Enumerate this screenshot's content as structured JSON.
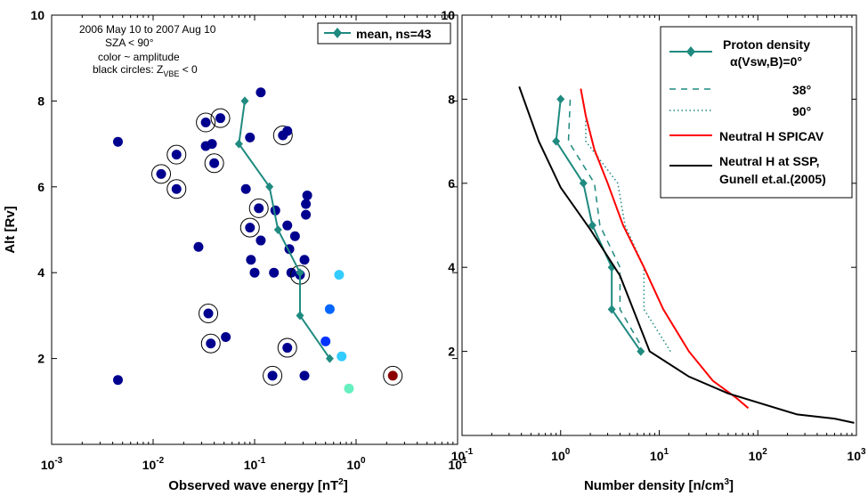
{
  "chart_data": [
    {
      "type": "scatter",
      "xscale": "log",
      "xlim": [
        0.001,
        10
      ],
      "ylim": [
        0,
        10
      ],
      "xlabel": "Observed wave energy [nT",
      "xlabel_sup": "2",
      "xlabel_end": "]",
      "ylabel": "Alt [Rv]",
      "x_ticks": [
        {
          "v": 0.001,
          "b": "10",
          "e": "-3"
        },
        {
          "v": 0.01,
          "b": "10",
          "e": "-2"
        },
        {
          "v": 0.1,
          "b": "10",
          "e": "-1"
        },
        {
          "v": 1,
          "b": "10",
          "e": "0"
        },
        {
          "v": 10,
          "b": "10",
          "e": "1"
        }
      ],
      "y_ticks": [
        {
          "v": 2,
          "label": "2"
        },
        {
          "v": 4,
          "label": "4"
        },
        {
          "v": 6,
          "label": "6"
        },
        {
          "v": 8,
          "label": "8"
        },
        {
          "v": 10,
          "label": "10"
        }
      ],
      "annotations": [
        "2006 May 10 to 2007 Aug 10",
        "SZA < 90°",
        "color ~ amplitude",
        "black circles: Z",
        "VBE",
        " < 0"
      ],
      "legend": {
        "label": "mean, ns=43",
        "position": "top-right"
      },
      "mean_line": {
        "name": "mean, ns=43",
        "color": "#1f8a80",
        "x": [
          0.55,
          0.28,
          0.28,
          0.17,
          0.14,
          0.07,
          0.08
        ],
        "y": [
          2,
          3,
          4,
          5,
          6,
          7,
          8
        ]
      },
      "points": [
        {
          "x": 0.0045,
          "y": 1.5,
          "c": "#00008f",
          "circled": false
        },
        {
          "x": 0.0045,
          "y": 7.05,
          "c": "#00008f",
          "circled": false
        },
        {
          "x": 0.012,
          "y": 6.3,
          "c": "#00008f",
          "circled": true
        },
        {
          "x": 0.017,
          "y": 6.75,
          "c": "#00008f",
          "circled": true
        },
        {
          "x": 0.017,
          "y": 5.95,
          "c": "#00008f",
          "circled": true
        },
        {
          "x": 0.028,
          "y": 4.6,
          "c": "#00008f",
          "circled": false
        },
        {
          "x": 0.033,
          "y": 7.5,
          "c": "#00008f",
          "circled": true
        },
        {
          "x": 0.033,
          "y": 6.95,
          "c": "#00008f",
          "circled": false
        },
        {
          "x": 0.038,
          "y": 7.0,
          "c": "#00008f",
          "circled": false
        },
        {
          "x": 0.035,
          "y": 3.05,
          "c": "#00008f",
          "circled": true
        },
        {
          "x": 0.037,
          "y": 2.35,
          "c": "#00008f",
          "circled": true
        },
        {
          "x": 0.04,
          "y": 6.55,
          "c": "#00008f",
          "circled": true
        },
        {
          "x": 0.046,
          "y": 7.6,
          "c": "#00008f",
          "circled": true
        },
        {
          "x": 0.052,
          "y": 2.5,
          "c": "#00008f",
          "circled": false
        },
        {
          "x": 0.082,
          "y": 5.95,
          "c": "#00008f",
          "circled": false
        },
        {
          "x": 0.09,
          "y": 7.15,
          "c": "#00008f",
          "circled": false
        },
        {
          "x": 0.09,
          "y": 5.05,
          "c": "#00008f",
          "circled": true
        },
        {
          "x": 0.092,
          "y": 4.3,
          "c": "#00008f",
          "circled": false
        },
        {
          "x": 0.1,
          "y": 4.0,
          "c": "#00008f",
          "circled": false
        },
        {
          "x": 0.11,
          "y": 5.5,
          "c": "#00008f",
          "circled": true
        },
        {
          "x": 0.115,
          "y": 4.75,
          "c": "#00008f",
          "circled": false
        },
        {
          "x": 0.115,
          "y": 8.2,
          "c": "#00008f",
          "circled": false
        },
        {
          "x": 0.15,
          "y": 1.6,
          "c": "#00008f",
          "circled": true
        },
        {
          "x": 0.155,
          "y": 4.0,
          "c": "#00008f",
          "circled": false
        },
        {
          "x": 0.16,
          "y": 5.45,
          "c": "#00008f",
          "circled": false
        },
        {
          "x": 0.19,
          "y": 7.2,
          "c": "#00008f",
          "circled": true
        },
        {
          "x": 0.21,
          "y": 2.25,
          "c": "#00008f",
          "circled": true
        },
        {
          "x": 0.21,
          "y": 5.1,
          "c": "#00008f",
          "circled": false
        },
        {
          "x": 0.21,
          "y": 7.3,
          "c": "#00008f",
          "circled": false
        },
        {
          "x": 0.22,
          "y": 4.55,
          "c": "#00008f",
          "circled": false
        },
        {
          "x": 0.23,
          "y": 4.0,
          "c": "#00008f",
          "circled": false
        },
        {
          "x": 0.25,
          "y": 4.85,
          "c": "#00008f",
          "circled": false
        },
        {
          "x": 0.28,
          "y": 3.95,
          "c": "#00008f",
          "circled": true
        },
        {
          "x": 0.31,
          "y": 1.6,
          "c": "#00008f",
          "circled": false
        },
        {
          "x": 0.31,
          "y": 4.3,
          "c": "#00008f",
          "circled": false
        },
        {
          "x": 0.32,
          "y": 5.35,
          "c": "#00008f",
          "circled": false
        },
        {
          "x": 0.32,
          "y": 5.6,
          "c": "#00008f",
          "circled": false
        },
        {
          "x": 0.33,
          "y": 5.8,
          "c": "#00008f",
          "circled": false
        },
        {
          "x": 0.5,
          "y": 2.4,
          "c": "#0033ff",
          "circled": false
        },
        {
          "x": 0.55,
          "y": 3.15,
          "c": "#0066ff",
          "circled": false
        },
        {
          "x": 0.68,
          "y": 3.95,
          "c": "#33ccff",
          "circled": false
        },
        {
          "x": 0.72,
          "y": 2.05,
          "c": "#33ccff",
          "circled": false
        },
        {
          "x": 0.85,
          "y": 1.3,
          "c": "#66f0c0",
          "circled": false
        },
        {
          "x": 2.3,
          "y": 1.6,
          "c": "#8b0000",
          "circled": true
        }
      ]
    },
    {
      "type": "line",
      "xscale": "log",
      "xlim": [
        0.1,
        1000
      ],
      "ylim": [
        0,
        10
      ],
      "xlabel": "Number density [n/cm",
      "xlabel_sup": "3",
      "xlabel_end": "]",
      "x_ticks": [
        {
          "v": 0.1,
          "b": "10",
          "e": "-1"
        },
        {
          "v": 1,
          "b": "10",
          "e": "0"
        },
        {
          "v": 10,
          "b": "10",
          "e": "1"
        },
        {
          "v": 100,
          "b": "10",
          "e": "2"
        },
        {
          "v": 1000,
          "b": "10",
          "e": "3"
        }
      ],
      "y_ticks": [
        {
          "v": 2,
          "label": "2"
        },
        {
          "v": 4,
          "label": "4"
        },
        {
          "v": 6,
          "label": "6"
        },
        {
          "v": 8,
          "label": "8"
        },
        {
          "v": 10,
          "label": "10"
        }
      ],
      "legend_position": "top-right",
      "series": [
        {
          "key": "p0",
          "name": "Proton density",
          "name2": "α(Vsw,B)=0°",
          "color": "#1f8a80",
          "style": "solid-diamond",
          "x": [
            6.5,
            3.3,
            3.3,
            2.1,
            1.7,
            0.9,
            1.0
          ],
          "y": [
            2,
            3,
            4,
            5,
            6,
            7,
            8
          ]
        },
        {
          "key": "p38",
          "name": "38°",
          "color": "#1f8a80",
          "style": "dashed",
          "x": [
            6.3,
            4.0,
            4.0,
            2.5,
            2.2,
            1.2,
            1.25
          ],
          "y": [
            2.2,
            3,
            4,
            5,
            6,
            7,
            8
          ]
        },
        {
          "key": "p90",
          "name": "90°",
          "color": "#1f8a80",
          "style": "dotted",
          "x": [
            13,
            7,
            7,
            4.5,
            3.8,
            1.8,
            1.8
          ],
          "y": [
            2,
            3,
            4,
            5,
            6,
            7,
            7.5
          ]
        },
        {
          "key": "spicav",
          "name": "Neutral H SPICAV",
          "color": "#ff0000",
          "style": "solid",
          "x": [
            1.6,
            1.8,
            2.2,
            3.0,
            4.3,
            7.0,
            11,
            20,
            35,
            60,
            80
          ],
          "y": [
            8.25,
            7.6,
            6.8,
            6.0,
            5.0,
            4.0,
            3.0,
            2.0,
            1.3,
            0.9,
            0.65
          ]
        },
        {
          "key": "ssp",
          "name": "Neutral H at SSP,",
          "name2": "Gunell et.al.(2005)",
          "color": "#000000",
          "style": "solid",
          "x": [
            0.38,
            0.6,
            1.0,
            2.0,
            4.0,
            8.0,
            20,
            50,
            250,
            600,
            950
          ],
          "y": [
            8.3,
            7.0,
            5.9,
            4.9,
            3.8,
            2.0,
            1.4,
            1.0,
            0.5,
            0.4,
            0.3
          ]
        }
      ]
    }
  ]
}
